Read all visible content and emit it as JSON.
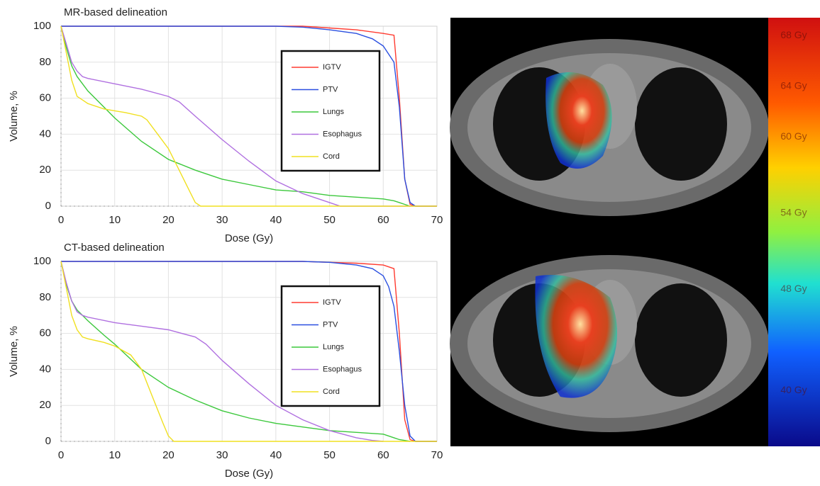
{
  "chart_data": [
    {
      "type": "line",
      "title": "MR-based delineation",
      "x_label": "Dose (Gy)",
      "y_label": "Volume, %",
      "xlim": [
        0,
        70
      ],
      "ylim": [
        0,
        100
      ],
      "xticks": [
        0,
        10,
        20,
        30,
        40,
        50,
        60,
        70
      ],
      "yticks": [
        0,
        20,
        40,
        60,
        80,
        100
      ],
      "grid": true,
      "legend": "upper right",
      "series": [
        {
          "name": "IGTV",
          "color": "#ff3b30",
          "x": [
            0,
            10,
            20,
            30,
            40,
            45,
            50,
            55,
            60,
            62,
            63,
            64,
            65,
            66,
            70
          ],
          "values": [
            100,
            100,
            100,
            100,
            100,
            100,
            99,
            98,
            96,
            95,
            60,
            15,
            1,
            0,
            0
          ]
        },
        {
          "name": "PTV",
          "color": "#2a4fe0",
          "x": [
            0,
            10,
            20,
            30,
            40,
            45,
            50,
            55,
            58,
            60,
            62,
            63,
            64,
            65,
            66,
            70
          ],
          "values": [
            100,
            100,
            100,
            100,
            100,
            99.5,
            98,
            96,
            93,
            89,
            80,
            55,
            15,
            2,
            0,
            0
          ]
        },
        {
          "name": "Lungs",
          "color": "#3cc83c",
          "x": [
            0,
            1,
            2,
            3,
            5,
            8,
            10,
            15,
            20,
            25,
            30,
            35,
            40,
            45,
            50,
            55,
            60,
            62,
            63,
            64,
            65
          ],
          "values": [
            100,
            88,
            78,
            72,
            64,
            55,
            49,
            36,
            26,
            20,
            15,
            12,
            9,
            8,
            6,
            5,
            4,
            3,
            2,
            1,
            0
          ]
        },
        {
          "name": "Esophagus",
          "color": "#b070e0",
          "x": [
            0,
            1,
            2,
            3,
            4,
            5,
            10,
            15,
            20,
            22,
            25,
            30,
            35,
            40,
            45,
            50,
            52,
            55,
            70
          ],
          "values": [
            100,
            90,
            80,
            75,
            72,
            71,
            68,
            65,
            61,
            58,
            50,
            37,
            25,
            14,
            7,
            2,
            0,
            0,
            0
          ]
        },
        {
          "name": "Cord",
          "color": "#f0e020",
          "x": [
            0,
            1,
            2,
            3,
            4,
            5,
            8,
            10,
            12,
            15,
            16,
            18,
            20,
            22,
            24,
            25,
            26,
            70
          ],
          "values": [
            100,
            85,
            70,
            61,
            59,
            57,
            54,
            53,
            52,
            50,
            48,
            40,
            32,
            20,
            8,
            2,
            0,
            0
          ]
        }
      ]
    },
    {
      "type": "line",
      "title": "CT-based delineation",
      "x_label": "Dose (Gy)",
      "y_label": "Volume, %",
      "xlim": [
        0,
        70
      ],
      "ylim": [
        0,
        100
      ],
      "xticks": [
        0,
        10,
        20,
        30,
        40,
        50,
        60,
        70
      ],
      "yticks": [
        0,
        20,
        40,
        60,
        80,
        100
      ],
      "grid": true,
      "legend": "upper right",
      "series": [
        {
          "name": "IGTV",
          "color": "#ff3b30",
          "x": [
            0,
            10,
            20,
            30,
            40,
            45,
            50,
            55,
            60,
            62,
            63,
            64,
            65,
            66,
            70
          ],
          "values": [
            100,
            100,
            100,
            100,
            100,
            100,
            99.5,
            99,
            98,
            96,
            60,
            12,
            1,
            0,
            0
          ]
        },
        {
          "name": "PTV",
          "color": "#2a4fe0",
          "x": [
            0,
            10,
            20,
            30,
            40,
            45,
            50,
            55,
            58,
            60,
            61,
            62,
            63,
            64,
            65,
            66,
            70
          ],
          "values": [
            100,
            100,
            100,
            100,
            100,
            100,
            99.5,
            98,
            96,
            92,
            86,
            75,
            50,
            20,
            3,
            0,
            0
          ]
        },
        {
          "name": "Lungs",
          "color": "#3cc83c",
          "x": [
            0,
            1,
            2,
            3,
            5,
            8,
            10,
            15,
            20,
            25,
            30,
            35,
            40,
            45,
            50,
            55,
            60,
            62,
            63,
            64,
            65
          ],
          "values": [
            100,
            87,
            78,
            73,
            67,
            59,
            54,
            40,
            30,
            23,
            17,
            13,
            10,
            8,
            6,
            5,
            4,
            2,
            1,
            0.5,
            0
          ]
        },
        {
          "name": "Esophagus",
          "color": "#b070e0",
          "x": [
            0,
            1,
            2,
            3,
            4,
            5,
            10,
            15,
            20,
            25,
            27,
            30,
            35,
            40,
            45,
            50,
            55,
            58,
            60
          ],
          "values": [
            100,
            88,
            78,
            72,
            70,
            69,
            66,
            64,
            62,
            58,
            54,
            45,
            32,
            20,
            12,
            6,
            2,
            0.5,
            0
          ]
        },
        {
          "name": "Cord",
          "color": "#f0e020",
          "x": [
            0,
            1,
            2,
            3,
            4,
            5,
            8,
            10,
            13,
            15,
            17,
            19,
            20,
            21,
            22,
            70
          ],
          "values": [
            100,
            85,
            70,
            62,
            58,
            57,
            55,
            53,
            48,
            40,
            25,
            10,
            3,
            0,
            0,
            0
          ]
        }
      ]
    }
  ],
  "image": {
    "colorbar": {
      "lim": [
        35.6,
        69.4
      ],
      "ticks": [
        {
          "value": 68,
          "label": "68 Gy"
        },
        {
          "value": 64,
          "label": "64 Gy"
        },
        {
          "value": 60,
          "label": "60 Gy"
        },
        {
          "value": 54,
          "label": "54 Gy"
        },
        {
          "value": 48,
          "label": "48 Gy"
        },
        {
          "value": 40,
          "label": "40 Gy"
        }
      ]
    }
  }
}
